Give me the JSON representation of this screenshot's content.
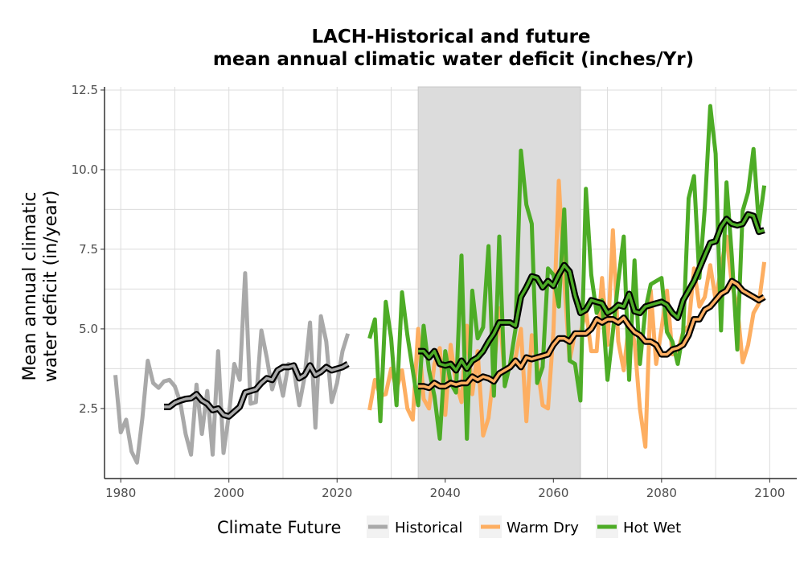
{
  "chart_data": {
    "type": "line",
    "title": [
      "LACH-Historical and future",
      "mean annual climatic water deficit (inches/Yr)"
    ],
    "xlabel": "",
    "ylabel": [
      "Mean annual climatic",
      "water deficit (in/year)"
    ],
    "xlim": [
      1977,
      2105
    ],
    "ylim": [
      0.3,
      12.6
    ],
    "x_ticks": [
      1980,
      2000,
      2020,
      2040,
      2060,
      2080,
      2100
    ],
    "y_ticks": [
      2.5,
      5.0,
      7.5,
      10.0,
      12.5
    ],
    "y_tick_labels": [
      "2.5",
      "5.0",
      "7.5",
      "10.0",
      "12.5"
    ],
    "shaded_period": [
      2035,
      2065
    ],
    "grid": true,
    "legend": {
      "title": "Climate Future",
      "placement": "bottom",
      "entries": [
        "Historical",
        "Warm Dry",
        "Hot Wet"
      ]
    },
    "colors": {
      "Historical": "#a9a9a9",
      "Warm Dry": "#fdae61",
      "Hot Wet": "#4dac26",
      "shade": "#dcdcdc",
      "smooth_outline": "#000000"
    },
    "series": [
      {
        "name": "Historical",
        "x": [
          1979,
          1980,
          1981,
          1982,
          1983,
          1984,
          1985,
          1986,
          1987,
          1988,
          1989,
          1990,
          1991,
          1992,
          1993,
          1994,
          1995,
          1996,
          1997,
          1998,
          1999,
          2000,
          2001,
          2002,
          2003,
          2004,
          2005,
          2006,
          2007,
          2008,
          2009,
          2010,
          2011,
          2012,
          2013,
          2014,
          2015,
          2016,
          2017,
          2018,
          2019,
          2020,
          2021,
          2022
        ],
        "values": [
          3.55,
          1.75,
          2.15,
          1.15,
          0.8,
          2.2,
          4.0,
          3.3,
          3.15,
          3.35,
          3.4,
          3.2,
          2.7,
          1.7,
          1.05,
          3.25,
          1.7,
          3.05,
          1.05,
          4.3,
          1.1,
          2.3,
          3.9,
          3.4,
          6.75,
          2.65,
          2.7,
          4.95,
          4.1,
          3.1,
          3.7,
          2.9,
          3.9,
          3.75,
          2.6,
          3.5,
          5.2,
          1.9,
          5.4,
          4.6,
          2.7,
          3.3,
          4.3,
          4.85
        ],
        "smooth_x": [
          1988,
          1989,
          1990,
          1991,
          1992,
          1993,
          1994,
          1995,
          1996,
          1997,
          1998,
          1999,
          2000,
          2001,
          2002,
          2003,
          2004,
          2005,
          2006,
          2007,
          2008,
          2009,
          2010,
          2011,
          2012,
          2013,
          2014,
          2015,
          2016,
          2017,
          2018,
          2019,
          2020,
          2021,
          2022
        ],
        "smooth_values": [
          2.55,
          2.55,
          2.68,
          2.75,
          2.8,
          2.82,
          2.95,
          2.75,
          2.65,
          2.45,
          2.5,
          2.3,
          2.25,
          2.4,
          2.55,
          3.0,
          3.05,
          3.1,
          3.3,
          3.45,
          3.4,
          3.7,
          3.8,
          3.8,
          3.85,
          3.45,
          3.55,
          3.85,
          3.55,
          3.65,
          3.8,
          3.7,
          3.75,
          3.8,
          3.9
        ]
      },
      {
        "name": "Warm Dry",
        "x": [
          2026,
          2027,
          2028,
          2029,
          2030,
          2031,
          2032,
          2033,
          2034,
          2035,
          2036,
          2037,
          2038,
          2039,
          2040,
          2041,
          2042,
          2043,
          2044,
          2045,
          2046,
          2047,
          2048,
          2049,
          2050,
          2051,
          2052,
          2053,
          2054,
          2055,
          2056,
          2057,
          2058,
          2059,
          2060,
          2061,
          2062,
          2063,
          2064,
          2065,
          2066,
          2067,
          2068,
          2069,
          2070,
          2071,
          2072,
          2073,
          2074,
          2075,
          2076,
          2077,
          2078,
          2079,
          2080,
          2081,
          2082,
          2083,
          2084,
          2085,
          2086,
          2087,
          2088,
          2089,
          2090,
          2091,
          2092,
          2093,
          2094,
          2095,
          2096,
          2097,
          2098,
          2099
        ],
        "values": [
          2.45,
          3.4,
          2.9,
          2.95,
          3.75,
          3.1,
          3.7,
          2.5,
          2.15,
          5.0,
          2.8,
          2.5,
          3.9,
          4.4,
          2.3,
          4.5,
          3.3,
          2.7,
          5.1,
          2.95,
          4.3,
          1.65,
          2.2,
          3.7,
          5.65,
          3.5,
          3.8,
          4.1,
          5.0,
          2.1,
          4.8,
          3.9,
          2.6,
          2.5,
          4.9,
          9.65,
          6.5,
          4.0,
          4.9,
          4.85,
          5.6,
          4.3,
          4.3,
          6.6,
          4.5,
          8.1,
          4.6,
          3.7,
          5.2,
          4.6,
          2.5,
          1.3,
          6.2,
          3.9,
          5.0,
          6.2,
          4.2,
          4.3,
          4.9,
          5.1,
          6.9,
          5.7,
          6.0,
          7.0,
          5.9,
          6.9,
          7.9,
          6.4,
          5.7,
          3.95,
          4.5,
          5.5,
          5.8,
          7.1
        ],
        "smooth_x": [
          2035,
          2036,
          2037,
          2038,
          2039,
          2040,
          2041,
          2042,
          2043,
          2044,
          2045,
          2046,
          2047,
          2048,
          2049,
          2050,
          2051,
          2052,
          2053,
          2054,
          2055,
          2056,
          2057,
          2058,
          2059,
          2060,
          2061,
          2062,
          2063,
          2064,
          2065,
          2066,
          2067,
          2068,
          2069,
          2070,
          2071,
          2072,
          2073,
          2074,
          2075,
          2076,
          2077,
          2078,
          2079,
          2080,
          2081,
          2082,
          2083,
          2084,
          2085,
          2086,
          2087,
          2088,
          2089,
          2090,
          2091,
          2092,
          2093,
          2094,
          2095,
          2096,
          2097,
          2098,
          2099
        ],
        "smooth_values": [
          3.2,
          3.2,
          3.15,
          3.3,
          3.2,
          3.2,
          3.3,
          3.25,
          3.3,
          3.3,
          3.5,
          3.4,
          3.5,
          3.45,
          3.35,
          3.6,
          3.7,
          3.8,
          4.0,
          3.8,
          4.1,
          4.05,
          4.1,
          4.15,
          4.2,
          4.5,
          4.7,
          4.7,
          4.6,
          4.85,
          4.85,
          4.85,
          5.0,
          5.3,
          5.2,
          5.3,
          5.3,
          5.2,
          5.35,
          5.1,
          4.9,
          4.8,
          4.6,
          4.6,
          4.5,
          4.2,
          4.2,
          4.35,
          4.4,
          4.5,
          4.8,
          5.3,
          5.3,
          5.6,
          5.7,
          5.9,
          6.1,
          6.2,
          6.5,
          6.4,
          6.2,
          6.1,
          6.0,
          5.9,
          6.0
        ]
      },
      {
        "name": "Hot Wet",
        "x": [
          2026,
          2027,
          2028,
          2029,
          2030,
          2031,
          2032,
          2033,
          2034,
          2035,
          2036,
          2037,
          2038,
          2039,
          2040,
          2041,
          2042,
          2043,
          2044,
          2045,
          2046,
          2047,
          2048,
          2049,
          2050,
          2051,
          2052,
          2053,
          2054,
          2055,
          2056,
          2057,
          2058,
          2059,
          2060,
          2061,
          2062,
          2063,
          2064,
          2065,
          2066,
          2067,
          2068,
          2069,
          2070,
          2071,
          2072,
          2073,
          2074,
          2075,
          2076,
          2077,
          2078,
          2079,
          2080,
          2081,
          2082,
          2083,
          2084,
          2085,
          2086,
          2087,
          2088,
          2089,
          2090,
          2091,
          2092,
          2093,
          2094,
          2095,
          2096,
          2097,
          2098,
          2099
        ],
        "values": [
          4.7,
          5.3,
          2.1,
          5.85,
          4.7,
          2.6,
          6.15,
          4.8,
          3.7,
          2.6,
          5.1,
          3.7,
          2.9,
          1.55,
          4.3,
          3.3,
          3.0,
          7.3,
          1.55,
          6.2,
          4.7,
          5.05,
          7.6,
          2.9,
          7.9,
          3.2,
          3.9,
          5.0,
          10.6,
          8.9,
          8.3,
          3.3,
          3.8,
          6.9,
          6.7,
          5.7,
          8.75,
          4.0,
          3.9,
          2.75,
          9.4,
          6.7,
          5.5,
          5.9,
          3.4,
          4.9,
          6.5,
          7.9,
          3.4,
          7.15,
          3.9,
          5.6,
          6.4,
          6.5,
          6.6,
          4.9,
          4.6,
          3.9,
          4.9,
          9.1,
          9.8,
          6.6,
          8.8,
          12.0,
          10.5,
          4.95,
          9.6,
          7.25,
          4.35,
          8.7,
          9.3,
          10.65,
          8.25,
          9.5
        ],
        "smooth_x": [
          2035,
          2036,
          2037,
          2038,
          2039,
          2040,
          2041,
          2042,
          2043,
          2044,
          2045,
          2046,
          2047,
          2048,
          2049,
          2050,
          2051,
          2052,
          2053,
          2054,
          2055,
          2056,
          2057,
          2058,
          2059,
          2060,
          2061,
          2062,
          2063,
          2064,
          2065,
          2066,
          2067,
          2068,
          2069,
          2070,
          2071,
          2072,
          2073,
          2074,
          2075,
          2076,
          2077,
          2078,
          2079,
          2080,
          2081,
          2082,
          2083,
          2084,
          2085,
          2086,
          2087,
          2088,
          2089,
          2090,
          2091,
          2092,
          2093,
          2094,
          2095,
          2096,
          2097,
          2098,
          2099
        ],
        "smooth_values": [
          4.3,
          4.3,
          4.1,
          4.3,
          3.9,
          3.85,
          3.9,
          3.7,
          4.0,
          3.75,
          4.0,
          4.1,
          4.3,
          4.6,
          4.85,
          5.2,
          5.2,
          5.2,
          5.1,
          6.0,
          6.3,
          6.65,
          6.6,
          6.3,
          6.5,
          6.35,
          6.7,
          7.0,
          6.8,
          6.05,
          5.5,
          5.6,
          5.9,
          5.85,
          5.8,
          5.5,
          5.6,
          5.75,
          5.7,
          6.1,
          5.55,
          5.5,
          5.7,
          5.75,
          5.8,
          5.85,
          5.75,
          5.5,
          5.35,
          5.9,
          6.2,
          6.5,
          6.9,
          7.3,
          7.7,
          7.75,
          8.2,
          8.45,
          8.3,
          8.25,
          8.3,
          8.6,
          8.55,
          8.05,
          8.1
        ]
      }
    ]
  }
}
